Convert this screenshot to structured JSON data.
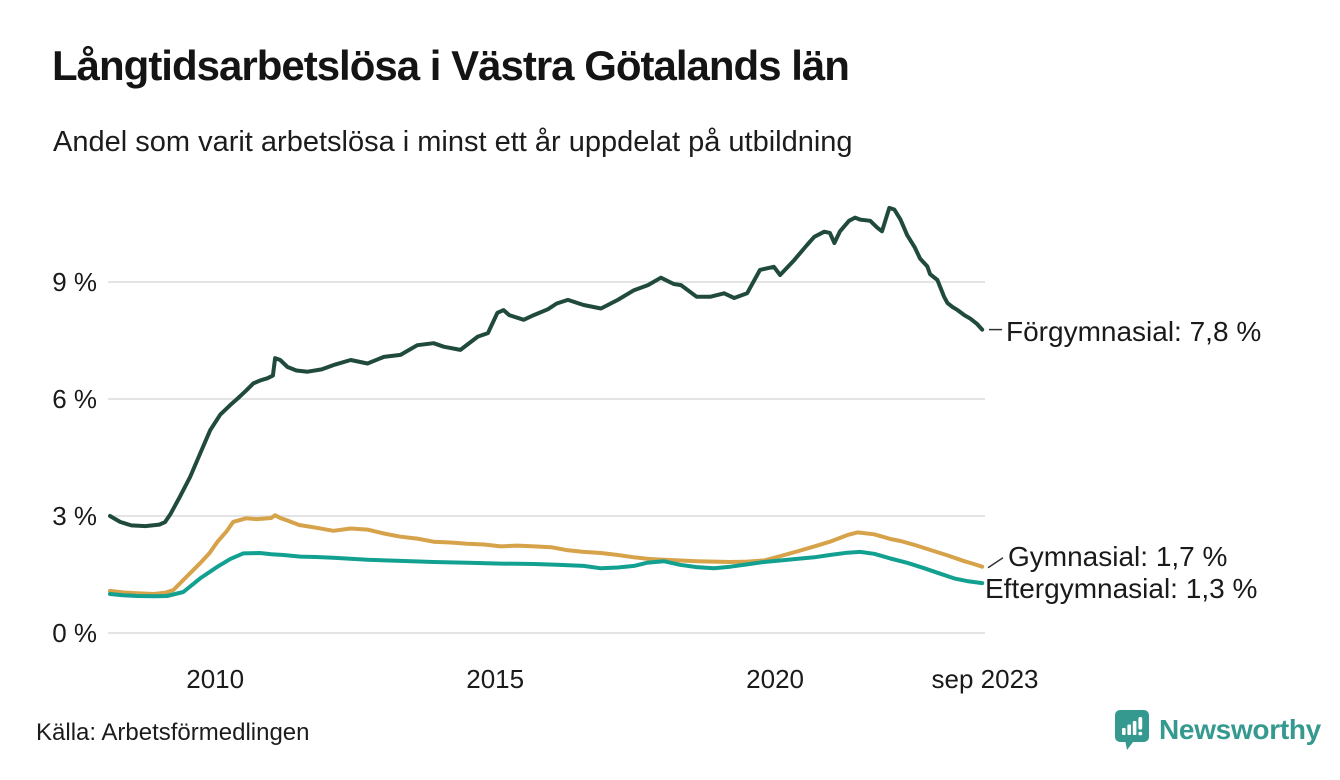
{
  "header": {
    "title": "Långtidsarbetslösa i Västra Götalands län",
    "subtitle": "Andel som varit arbetslösa i minst ett år uppdelat på utbildning"
  },
  "chart_data": {
    "type": "line",
    "title": "Långtidsarbetslösa i Västra Götalands län",
    "subtitle": "Andel som varit arbetslösa i minst ett år uppdelat på utbildning",
    "xlabel": "",
    "ylabel": "",
    "unit": "%",
    "xlim": [
      2008.12,
      2023.75
    ],
    "ylim": [
      0,
      11
    ],
    "grid": "horizontal",
    "background_color": "#ffffff",
    "grid_color": "#e4e4e4",
    "text_color": "#1a1a1a",
    "annotation_line_color": "#333333",
    "legend_position": "end-of-line-labels",
    "y_ticks": [
      {
        "value": 0,
        "label": "0 %"
      },
      {
        "value": 3,
        "label": "3 %"
      },
      {
        "value": 6,
        "label": "6 %"
      },
      {
        "value": 9,
        "label": "9 %"
      }
    ],
    "x_ticks": [
      {
        "value": 2010,
        "label": "2010"
      },
      {
        "value": 2015,
        "label": "2015"
      },
      {
        "value": 2020,
        "label": "2020"
      },
      {
        "value": 2023.75,
        "label": "sep 2023"
      }
    ],
    "series": [
      {
        "name": "Förgymnasial",
        "color": "#204a3d",
        "end_value": "7,8 %",
        "end_label": "Förgymnasial: 7,8 %",
        "points": [
          [
            2008.12,
            3.0
          ],
          [
            2008.3,
            2.85
          ],
          [
            2008.5,
            2.76
          ],
          [
            2008.75,
            2.74
          ],
          [
            2009.0,
            2.78
          ],
          [
            2009.1,
            2.84
          ],
          [
            2009.2,
            3.05
          ],
          [
            2009.37,
            3.5
          ],
          [
            2009.55,
            4.0
          ],
          [
            2009.73,
            4.6
          ],
          [
            2009.91,
            5.2
          ],
          [
            2010.09,
            5.6
          ],
          [
            2010.27,
            5.85
          ],
          [
            2010.39,
            6.0
          ],
          [
            2010.54,
            6.2
          ],
          [
            2010.68,
            6.4
          ],
          [
            2010.81,
            6.48
          ],
          [
            2010.93,
            6.53
          ],
          [
            2011.03,
            6.6
          ],
          [
            2011.07,
            7.05
          ],
          [
            2011.16,
            7.0
          ],
          [
            2011.29,
            6.82
          ],
          [
            2011.45,
            6.73
          ],
          [
            2011.65,
            6.7
          ],
          [
            2011.9,
            6.76
          ],
          [
            2012.11,
            6.87
          ],
          [
            2012.42,
            7.0
          ],
          [
            2012.72,
            6.91
          ],
          [
            2013.01,
            7.08
          ],
          [
            2013.31,
            7.13
          ],
          [
            2013.61,
            7.38
          ],
          [
            2013.9,
            7.43
          ],
          [
            2014.08,
            7.34
          ],
          [
            2014.38,
            7.26
          ],
          [
            2014.69,
            7.6
          ],
          [
            2014.87,
            7.69
          ],
          [
            2015.04,
            8.21
          ],
          [
            2015.15,
            8.28
          ],
          [
            2015.25,
            8.15
          ],
          [
            2015.51,
            8.03
          ],
          [
            2015.69,
            8.15
          ],
          [
            2015.94,
            8.3
          ],
          [
            2016.1,
            8.45
          ],
          [
            2016.3,
            8.54
          ],
          [
            2016.58,
            8.41
          ],
          [
            2016.89,
            8.32
          ],
          [
            2017.19,
            8.54
          ],
          [
            2017.48,
            8.79
          ],
          [
            2017.73,
            8.92
          ],
          [
            2017.96,
            9.11
          ],
          [
            2018.19,
            8.95
          ],
          [
            2018.32,
            8.92
          ],
          [
            2018.6,
            8.62
          ],
          [
            2018.84,
            8.62
          ],
          [
            2019.09,
            8.71
          ],
          [
            2019.27,
            8.59
          ],
          [
            2019.5,
            8.71
          ],
          [
            2019.73,
            9.31
          ],
          [
            2019.98,
            9.39
          ],
          [
            2020.09,
            9.18
          ],
          [
            2020.34,
            9.56
          ],
          [
            2020.57,
            9.95
          ],
          [
            2020.7,
            10.16
          ],
          [
            2020.88,
            10.29
          ],
          [
            2020.98,
            10.26
          ],
          [
            2021.06,
            10.0
          ],
          [
            2021.16,
            10.3
          ],
          [
            2021.32,
            10.57
          ],
          [
            2021.43,
            10.65
          ],
          [
            2021.52,
            10.6
          ],
          [
            2021.7,
            10.57
          ],
          [
            2021.82,
            10.4
          ],
          [
            2021.91,
            10.3
          ],
          [
            2022.04,
            10.9
          ],
          [
            2022.13,
            10.86
          ],
          [
            2022.24,
            10.6
          ],
          [
            2022.36,
            10.2
          ],
          [
            2022.49,
            9.9
          ],
          [
            2022.59,
            9.6
          ],
          [
            2022.72,
            9.4
          ],
          [
            2022.77,
            9.2
          ],
          [
            2022.9,
            9.05
          ],
          [
            2023.02,
            8.62
          ],
          [
            2023.08,
            8.46
          ],
          [
            2023.17,
            8.36
          ],
          [
            2023.26,
            8.28
          ],
          [
            2023.38,
            8.15
          ],
          [
            2023.49,
            8.06
          ],
          [
            2023.61,
            7.92
          ],
          [
            2023.7,
            7.78
          ]
        ]
      },
      {
        "name": "Gymnasial",
        "color": "#d6a24a",
        "end_value": "1,7 %",
        "end_label": "Gymnasial: 1,7 %",
        "points": [
          [
            2008.12,
            1.08
          ],
          [
            2008.35,
            1.04
          ],
          [
            2008.6,
            1.02
          ],
          [
            2008.9,
            1.0
          ],
          [
            2009.1,
            1.03
          ],
          [
            2009.25,
            1.1
          ],
          [
            2009.43,
            1.36
          ],
          [
            2009.73,
            1.79
          ],
          [
            2009.9,
            2.05
          ],
          [
            2010.04,
            2.34
          ],
          [
            2010.2,
            2.6
          ],
          [
            2010.32,
            2.85
          ],
          [
            2010.55,
            2.94
          ],
          [
            2010.75,
            2.92
          ],
          [
            2011.0,
            2.95
          ],
          [
            2011.07,
            3.02
          ],
          [
            2011.16,
            2.95
          ],
          [
            2011.3,
            2.88
          ],
          [
            2011.5,
            2.77
          ],
          [
            2011.8,
            2.7
          ],
          [
            2012.11,
            2.62
          ],
          [
            2012.42,
            2.68
          ],
          [
            2012.72,
            2.65
          ],
          [
            2013.01,
            2.55
          ],
          [
            2013.31,
            2.47
          ],
          [
            2013.61,
            2.42
          ],
          [
            2013.9,
            2.34
          ],
          [
            2014.2,
            2.32
          ],
          [
            2014.5,
            2.29
          ],
          [
            2014.8,
            2.27
          ],
          [
            2015.1,
            2.22
          ],
          [
            2015.4,
            2.24
          ],
          [
            2015.7,
            2.22
          ],
          [
            2016.0,
            2.2
          ],
          [
            2016.3,
            2.12
          ],
          [
            2016.58,
            2.08
          ],
          [
            2016.89,
            2.05
          ],
          [
            2017.19,
            2.0
          ],
          [
            2017.48,
            1.94
          ],
          [
            2017.73,
            1.9
          ],
          [
            2018.01,
            1.88
          ],
          [
            2018.32,
            1.86
          ],
          [
            2018.6,
            1.84
          ],
          [
            2018.91,
            1.83
          ],
          [
            2019.2,
            1.82
          ],
          [
            2019.5,
            1.83
          ],
          [
            2019.8,
            1.86
          ],
          [
            2020.09,
            1.97
          ],
          [
            2020.39,
            2.09
          ],
          [
            2020.7,
            2.22
          ],
          [
            2020.98,
            2.34
          ],
          [
            2021.29,
            2.51
          ],
          [
            2021.47,
            2.58
          ],
          [
            2021.77,
            2.53
          ],
          [
            2022.06,
            2.41
          ],
          [
            2022.24,
            2.36
          ],
          [
            2022.49,
            2.26
          ],
          [
            2022.77,
            2.13
          ],
          [
            2023.08,
            1.99
          ],
          [
            2023.38,
            1.84
          ],
          [
            2023.55,
            1.77
          ],
          [
            2023.7,
            1.7
          ]
        ]
      },
      {
        "name": "Eftergymnasial",
        "color": "#12a091",
        "end_value": "1,3 %",
        "end_label": "Eftergymnasial: 1,3 %",
        "points": [
          [
            2008.12,
            1.0
          ],
          [
            2008.35,
            0.97
          ],
          [
            2008.6,
            0.95
          ],
          [
            2008.9,
            0.94
          ],
          [
            2009.14,
            0.95
          ],
          [
            2009.43,
            1.05
          ],
          [
            2009.73,
            1.4
          ],
          [
            2010.04,
            1.7
          ],
          [
            2010.27,
            1.9
          ],
          [
            2010.5,
            2.04
          ],
          [
            2010.8,
            2.05
          ],
          [
            2011.0,
            2.02
          ],
          [
            2011.22,
            2.0
          ],
          [
            2011.52,
            1.96
          ],
          [
            2011.8,
            1.95
          ],
          [
            2012.11,
            1.93
          ],
          [
            2012.72,
            1.88
          ],
          [
            2013.31,
            1.85
          ],
          [
            2013.9,
            1.82
          ],
          [
            2014.51,
            1.8
          ],
          [
            2015.1,
            1.78
          ],
          [
            2015.7,
            1.77
          ],
          [
            2016.1,
            1.75
          ],
          [
            2016.58,
            1.72
          ],
          [
            2016.89,
            1.66
          ],
          [
            2017.19,
            1.68
          ],
          [
            2017.48,
            1.72
          ],
          [
            2017.71,
            1.8
          ],
          [
            2018.01,
            1.84
          ],
          [
            2018.3,
            1.75
          ],
          [
            2018.6,
            1.69
          ],
          [
            2018.91,
            1.66
          ],
          [
            2019.2,
            1.7
          ],
          [
            2019.5,
            1.76
          ],
          [
            2019.8,
            1.82
          ],
          [
            2020.09,
            1.86
          ],
          [
            2020.39,
            1.9
          ],
          [
            2020.7,
            1.94
          ],
          [
            2020.98,
            2.0
          ],
          [
            2021.29,
            2.06
          ],
          [
            2021.52,
            2.08
          ],
          [
            2021.77,
            2.03
          ],
          [
            2022.06,
            1.91
          ],
          [
            2022.36,
            1.8
          ],
          [
            2022.67,
            1.66
          ],
          [
            2022.95,
            1.52
          ],
          [
            2023.2,
            1.4
          ],
          [
            2023.43,
            1.33
          ],
          [
            2023.7,
            1.28
          ]
        ]
      }
    ]
  },
  "footer": {
    "source": "Källa: Arbetsförmedlingen",
    "brand": "Newsworthy",
    "brand_color": "#35998f"
  }
}
